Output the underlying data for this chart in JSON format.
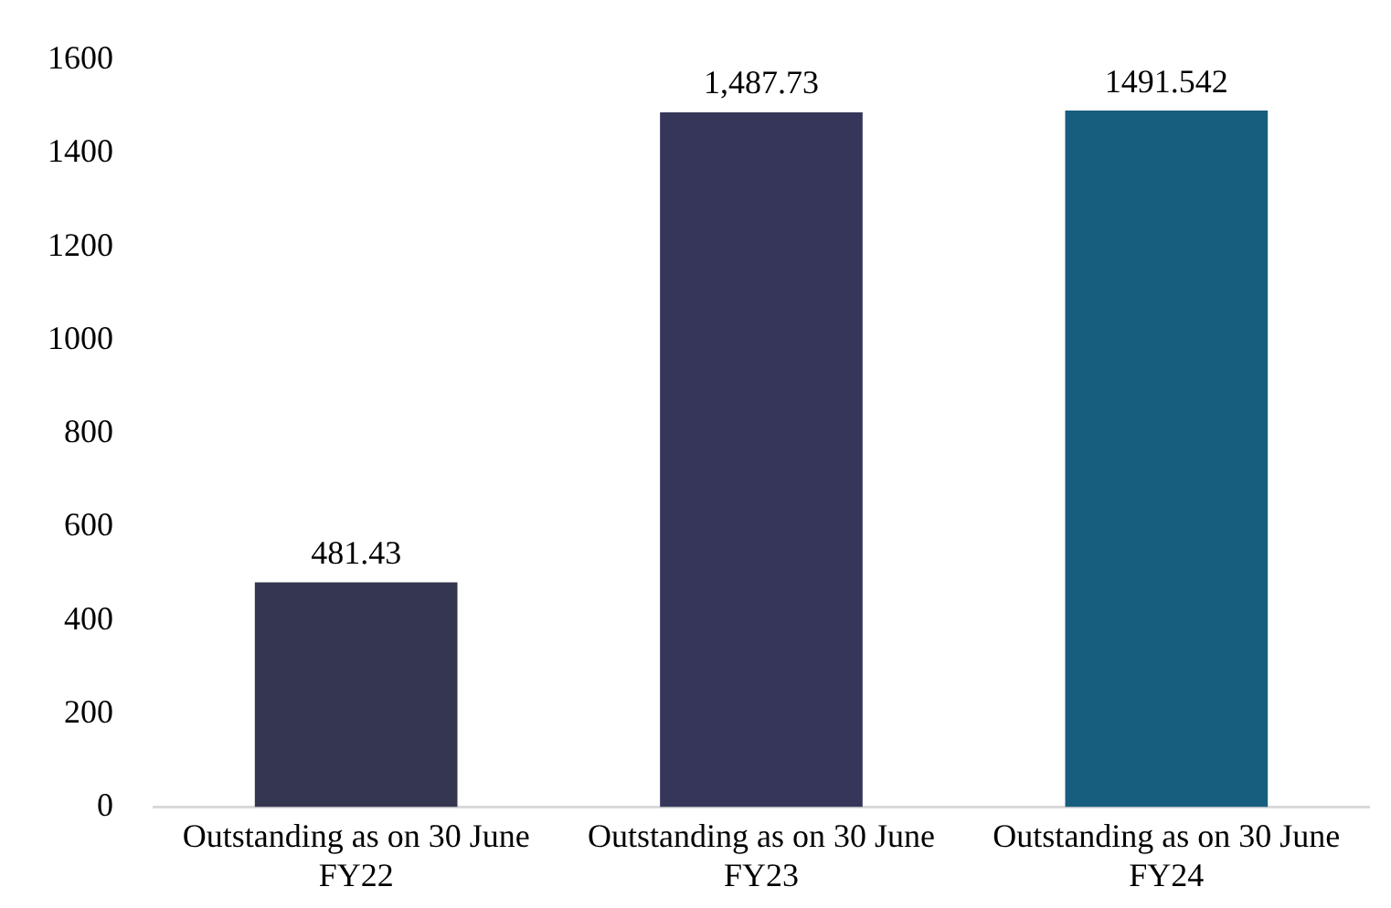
{
  "chart_data": {
    "type": "bar",
    "categories": [
      "Outstanding as on 30 June FY22",
      "Outstanding as on 30 June FY23",
      "Outstanding as on 30 June FY24"
    ],
    "values": [
      481.43,
      1487.73,
      1491.542
    ],
    "colors": [
      "#35364f",
      "#35365a",
      "#175d7e"
    ],
    "value_labels": [
      "481.43",
      "1,487.73",
      "1491.542"
    ],
    "ylim": [
      0,
      1600
    ],
    "yticks": [
      0,
      200,
      400,
      600,
      800,
      1000,
      1200,
      1400,
      1600
    ],
    "grid": false,
    "legend": false
  }
}
